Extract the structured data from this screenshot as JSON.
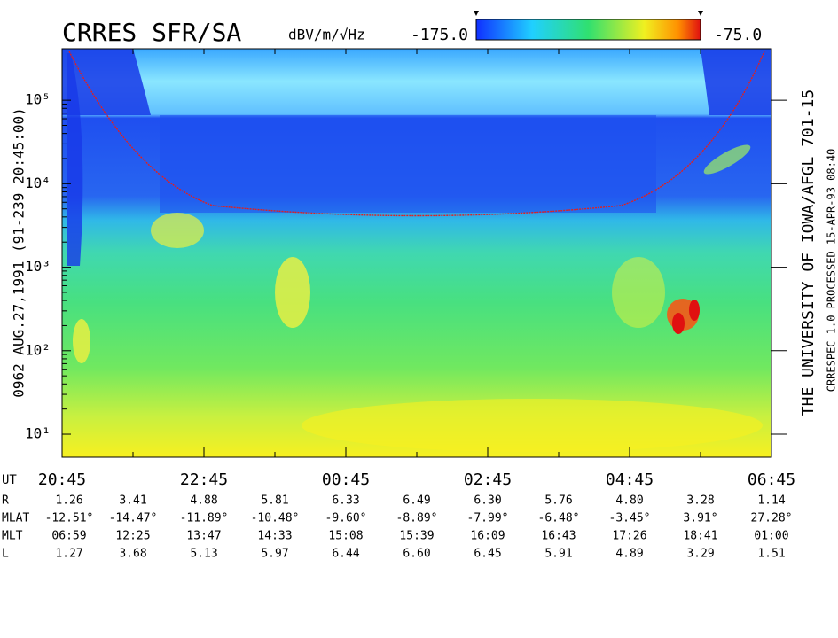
{
  "chart_data": {
    "type": "spectrogram",
    "title": "CRRES SFR/SA",
    "colorbar_label": "dBV/m/√Hz",
    "zlim": [
      -175,
      -75
    ],
    "zticks": [
      {
        "value": -175,
        "label": "-175.0"
      },
      {
        "value": -75,
        "label": "-75.0"
      }
    ],
    "log_y": true,
    "ylim": [
      5.3,
      414000
    ],
    "yticks": [
      {
        "value": 10,
        "label": "10¹"
      },
      {
        "value": 100,
        "label": "10²"
      },
      {
        "value": 1000,
        "label": "10³"
      },
      {
        "value": 10000,
        "label": "10⁴"
      },
      {
        "value": 100000,
        "label": "10⁵"
      }
    ],
    "left_label": "0962   AUG.27,1991   (91-239 20:45:00)",
    "right_label": "THE UNIVERSITY OF IOWA/AFGL 701-15",
    "right_label_2": "CRRESPEC 1.0   PROCESSED 15-APR-93   08:40",
    "x_label": "UT",
    "categories": [
      "20:45",
      null,
      "22:45",
      null,
      "00:45",
      null,
      "02:45",
      null,
      "04:45",
      null,
      "06:45"
    ],
    "ephemeris": [
      {
        "label": "R",
        "values": [
          "1.26",
          "3.41",
          "4.88",
          "5.81",
          "6.33",
          "6.49",
          "6.30",
          "5.76",
          "4.80",
          "3.28",
          "1.14"
        ]
      },
      {
        "label": "MLAT",
        "values": [
          "-12.51°",
          "-14.47°",
          "-11.89°",
          "-10.48°",
          "-9.60°",
          "-8.89°",
          "-7.99°",
          "-6.48°",
          "-3.45°",
          "3.91°",
          "27.28°"
        ]
      },
      {
        "label": "MLT",
        "values": [
          "06:59",
          "12:25",
          "13:47",
          "14:33",
          "15:08",
          "15:39",
          "16:09",
          "16:43",
          "17:26",
          "18:41",
          "01:00"
        ]
      },
      {
        "label": "L",
        "values": [
          "1.27",
          "3.68",
          "5.13",
          "5.97",
          "6.44",
          "6.60",
          "6.45",
          "5.91",
          "4.89",
          "3.29",
          "1.51"
        ]
      }
    ]
  }
}
